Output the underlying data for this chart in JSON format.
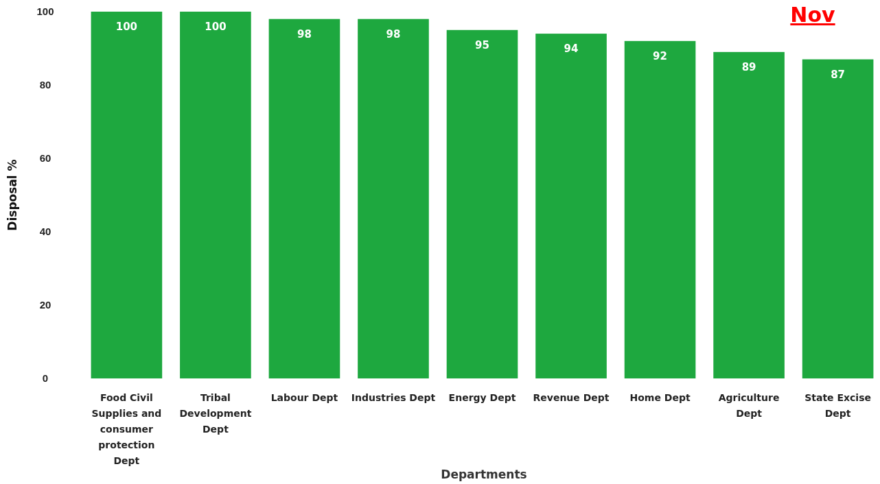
{
  "chart_data": {
    "type": "bar",
    "title": "Nov",
    "xlabel": "Departments",
    "ylabel": "Disposal %",
    "categories": [
      "Food Civil Supplies and consumer protection Dept",
      "Tribal Development Dept",
      "Labour Dept",
      "Industries Dept",
      "Energy Dept",
      "Revenue Dept",
      "Home Dept",
      "Agriculture Dept",
      "State Excise Dept"
    ],
    "values": [
      100,
      100,
      98,
      98,
      95,
      94,
      92,
      89,
      87
    ],
    "color": "#1ea83f",
    "ylim": [
      0,
      100
    ],
    "yticks": [
      0,
      20,
      40,
      60,
      80,
      100
    ],
    "data_labels": true,
    "grid": false
  }
}
